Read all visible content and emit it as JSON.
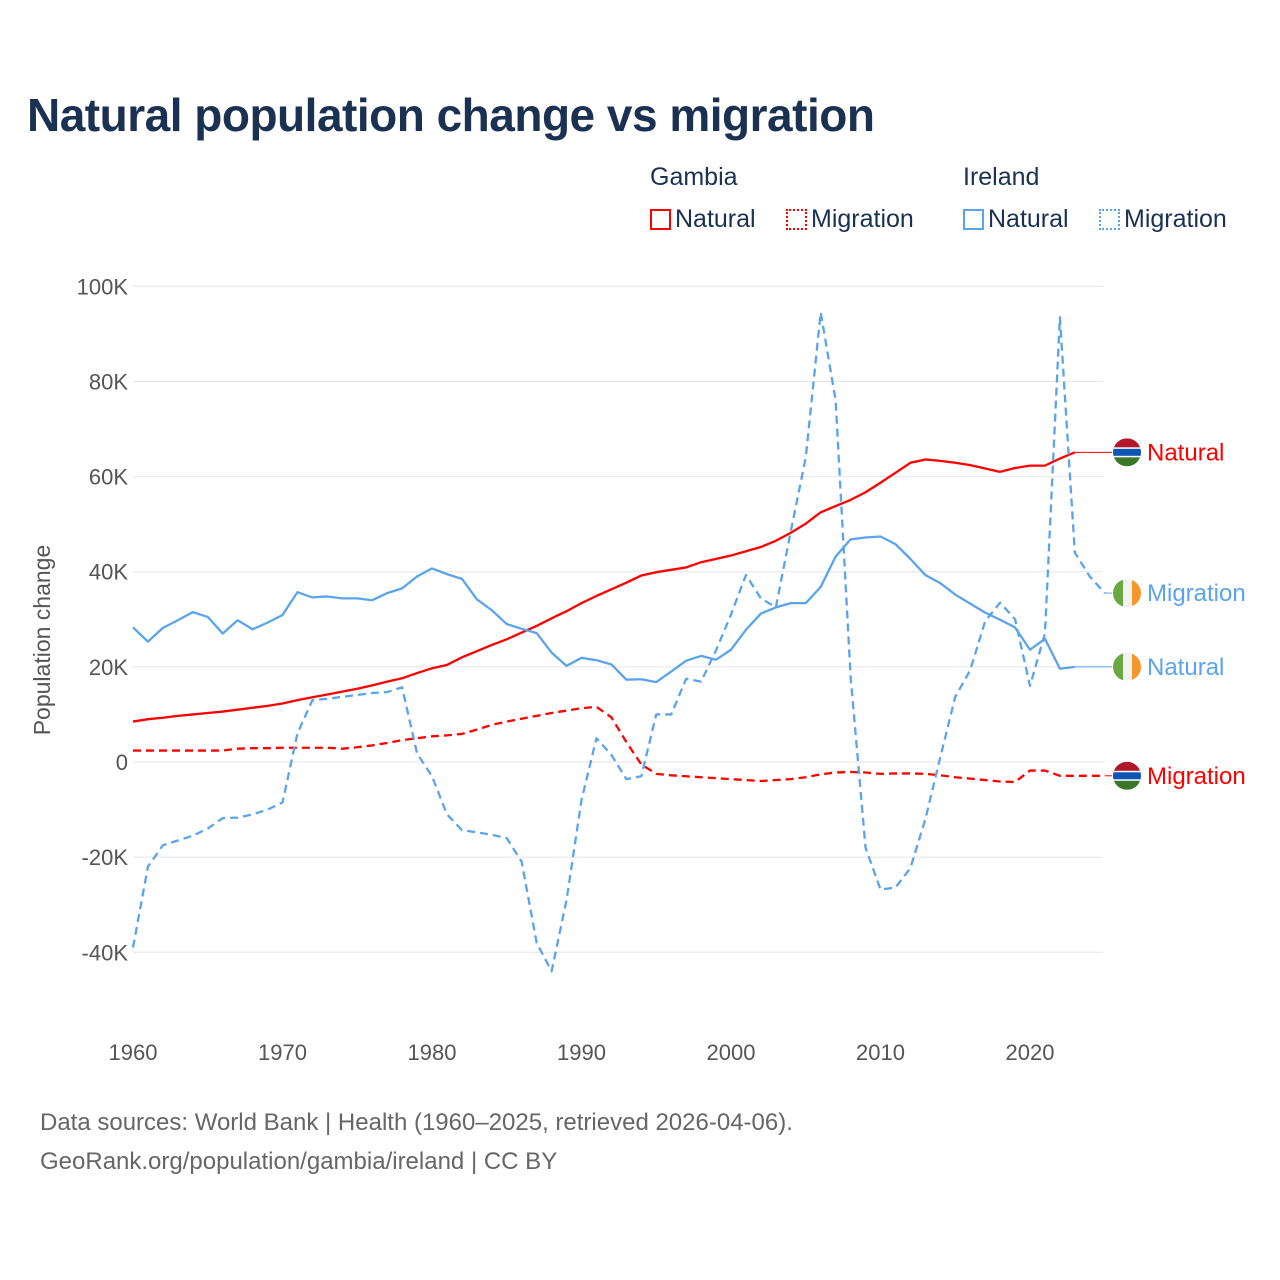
{
  "title": "Natural population change vs migration",
  "legend": {
    "groups": [
      {
        "label": "Gambia",
        "items": [
          {
            "label": "Natural",
            "style": "solid"
          },
          {
            "label": "Migration",
            "style": "dotted"
          }
        ]
      },
      {
        "label": "Ireland",
        "items": [
          {
            "label": "Natural",
            "style": "solid"
          },
          {
            "label": "Migration",
            "style": "dotted"
          }
        ]
      }
    ]
  },
  "footer": {
    "line1": "Data sources: World Bank | Health (1960–2025, retrieved 2026-04-06).",
    "line2": "GeoRank.org/population/gambia/ireland | CC BY"
  },
  "colors": {
    "gambia": "#ff0000",
    "ireland": "#5ba4ec"
  },
  "chart_data": {
    "type": "line",
    "title": "Natural population change vs migration",
    "xlabel": "",
    "ylabel": "Population change",
    "xlim": [
      1960,
      2025
    ],
    "ylim": [
      -50000,
      100000
    ],
    "xticks": [
      {
        "v": 1960,
        "label": "1960"
      },
      {
        "v": 1970,
        "label": "1970"
      },
      {
        "v": 1980,
        "label": "1980"
      },
      {
        "v": 1990,
        "label": "1990"
      },
      {
        "v": 2000,
        "label": "2000"
      },
      {
        "v": 2010,
        "label": "2010"
      },
      {
        "v": 2020,
        "label": "2020"
      }
    ],
    "yticks": [
      {
        "v": 100,
        "label": "100K"
      },
      {
        "v": 80,
        "label": "80K"
      },
      {
        "v": 60,
        "label": "60K"
      },
      {
        "v": 40,
        "label": "40K"
      },
      {
        "v": 20,
        "label": "20K"
      },
      {
        "v": 0,
        "label": "0"
      },
      {
        "v": -20,
        "label": "-20K"
      },
      {
        "v": -40,
        "label": "-40K"
      }
    ],
    "units": "thousands",
    "x_start": 1960,
    "grid": true,
    "series": [
      {
        "name": "Gambia Natural",
        "label": "Natural",
        "country": "gambia",
        "dash": false,
        "end_value": 65.1,
        "values": [
          8.5,
          9,
          9.3,
          9.7,
          10,
          10.3,
          10.6,
          11,
          11.4,
          11.8,
          12.3,
          13,
          13.6,
          14.2,
          14.8,
          15.4,
          16.1,
          16.9,
          17.6,
          18.7,
          19.7,
          20.4,
          22,
          23.3,
          24.6,
          25.8,
          27.2,
          28.6,
          30.2,
          31.7,
          33.4,
          34.9,
          36.3,
          37.7,
          39.2,
          39.9,
          40.4,
          40.9,
          42,
          42.7,
          43.4,
          44.3,
          45.2,
          46.5,
          48.2,
          50.1,
          52.5,
          53.8,
          55.1,
          56.7,
          58.7,
          60.8,
          62.9,
          63.6,
          63.3,
          62.9,
          62.4,
          61.7,
          61,
          61.8,
          62.3,
          62.3,
          63.8,
          65.1
        ]
      },
      {
        "name": "Gambia Migration",
        "label": "Migration",
        "country": "gambia",
        "dash": true,
        "end_value": -2.9,
        "values": [
          2.4,
          2.4,
          2.4,
          2.4,
          2.4,
          2.4,
          2.4,
          2.8,
          2.9,
          2.9,
          3,
          3,
          3,
          3,
          2.8,
          3.1,
          3.5,
          4,
          4.6,
          5,
          5.4,
          5.6,
          5.9,
          6.8,
          7.8,
          8.5,
          9.1,
          9.7,
          10.3,
          10.8,
          11.3,
          11.6,
          9.4,
          4.2,
          -0.5,
          -2.5,
          -2.8,
          -3,
          -3.2,
          -3.4,
          -3.6,
          -3.8,
          -4,
          -3.8,
          -3.6,
          -3.2,
          -2.6,
          -2.2,
          -2.1,
          -2.2,
          -2.5,
          -2.4,
          -2.4,
          -2.5,
          -2.8,
          -3.2,
          -3.5,
          -3.8,
          -4.1,
          -4.2,
          -1.8,
          -1.8,
          -2.9,
          -2.9,
          -2.9,
          -2.9
        ]
      },
      {
        "name": "Ireland Natural",
        "label": "Natural",
        "country": "ireland",
        "dash": false,
        "end_value": 20,
        "values": [
          28.3,
          25.3,
          28.2,
          29.8,
          31.5,
          30.5,
          27,
          29.8,
          27.9,
          29.3,
          30.9,
          35.7,
          34.6,
          34.8,
          34.4,
          34.4,
          34,
          35.5,
          36.5,
          39,
          40.7,
          39.5,
          38.5,
          34.2,
          31.9,
          29,
          28,
          27.1,
          23,
          20.2,
          21.9,
          21.4,
          20.5,
          17.3,
          17.4,
          16.8,
          19,
          21.3,
          22.3,
          21.5,
          23.6,
          27.8,
          31.2,
          32.5,
          33.4,
          33.4,
          36.8,
          43.2,
          46.8,
          47.2,
          47.4,
          45.8,
          42.7,
          39.3,
          37.6,
          35.2,
          33.3,
          31.4,
          29.9,
          28.3,
          23.6,
          25.9,
          19.6,
          20
        ]
      },
      {
        "name": "Ireland Migration",
        "label": "Migration",
        "country": "ireland",
        "dash": true,
        "end_value": 35.5,
        "values": [
          -39,
          -22,
          -17.5,
          -16.5,
          -15.5,
          -14,
          -11.8,
          -11.7,
          -11,
          -10,
          -8.5,
          6,
          13,
          13.3,
          13.7,
          14.1,
          14.5,
          14.7,
          15.7,
          1.8,
          -3,
          -11,
          -14.3,
          -14.8,
          -15.3,
          -16,
          -21,
          -38,
          -44,
          -29,
          -8,
          5,
          1.5,
          -3.6,
          -3,
          10,
          10,
          17.5,
          16.9,
          23.5,
          31,
          39.3,
          34.4,
          32.5,
          48.5,
          64,
          94.5,
          76,
          18,
          -18,
          -26.8,
          -26.4,
          -22.3,
          -12,
          1,
          13.7,
          19.3,
          29.6,
          33.5,
          30,
          16,
          27,
          93.5,
          44,
          39,
          35.5
        ]
      }
    ]
  }
}
